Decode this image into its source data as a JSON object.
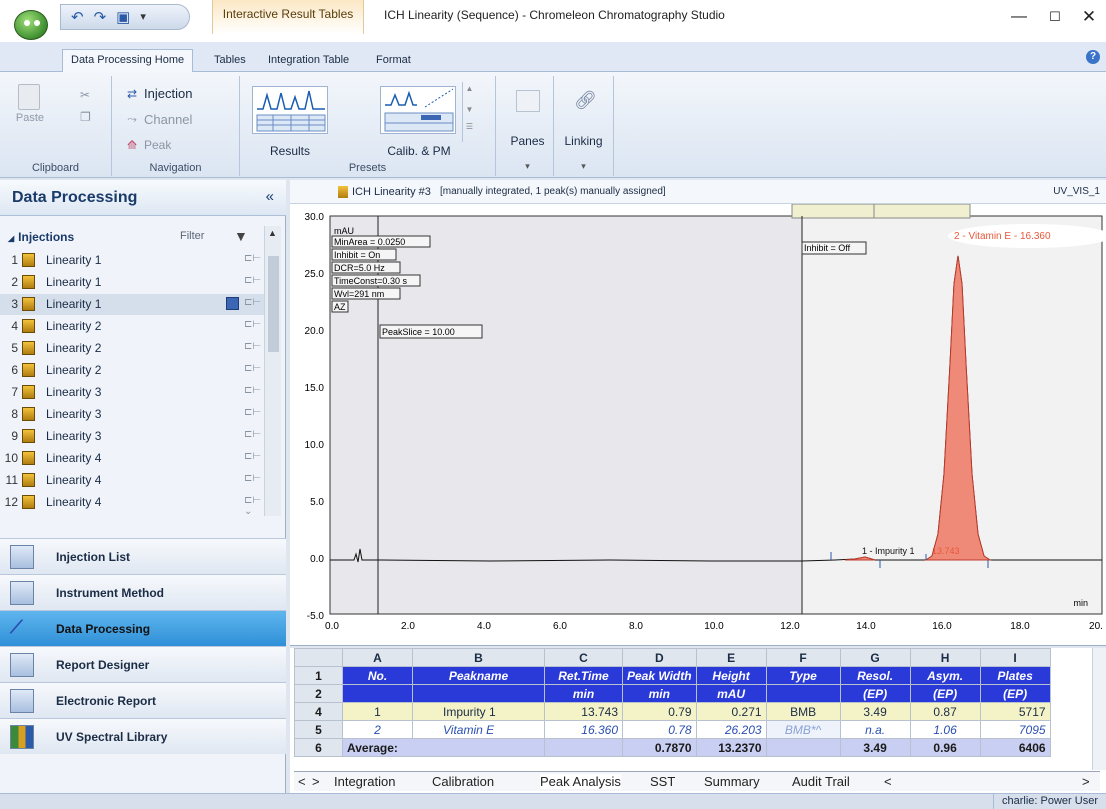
{
  "window": {
    "title": "ICH Linearity (Sequence) - Chromeleon Chromatography Studio",
    "context_tab": "Interactive Result Tables"
  },
  "ribbon_tabs": [
    "Data Processing Home",
    "Tables",
    "Integration Table",
    "Format"
  ],
  "ribbon": {
    "clipboard": {
      "paste": "Paste",
      "label": "Clipboard"
    },
    "navigation": {
      "injection": "Injection",
      "channel": "Channel",
      "peak": "Peak",
      "label": "Navigation"
    },
    "presets": {
      "results": "Results",
      "calib": "Calib. & PM",
      "label": "Presets"
    },
    "panes": "Panes",
    "linking": "Linking"
  },
  "left_pane": {
    "title": "Data Processing",
    "injections_label": "Injections",
    "filter_label": "Filter",
    "injections": [
      {
        "num": "1",
        "name": "Linearity 1"
      },
      {
        "num": "2",
        "name": "Linearity 1"
      },
      {
        "num": "3",
        "name": "Linearity 1"
      },
      {
        "num": "4",
        "name": "Linearity 2"
      },
      {
        "num": "5",
        "name": "Linearity 2"
      },
      {
        "num": "6",
        "name": "Linearity 2"
      },
      {
        "num": "7",
        "name": "Linearity 3"
      },
      {
        "num": "8",
        "name": "Linearity 3"
      },
      {
        "num": "9",
        "name": "Linearity 3"
      },
      {
        "num": "10",
        "name": "Linearity 4"
      },
      {
        "num": "11",
        "name": "Linearity 4"
      },
      {
        "num": "12",
        "name": "Linearity 4"
      }
    ],
    "workspaces": [
      "Injection List",
      "Instrument Method",
      "Data Processing",
      "Report Designer",
      "Electronic Report",
      "UV Spectral Library"
    ]
  },
  "chromatogram": {
    "title": "ICH Linearity #3",
    "title_detail": "[manually integrated, 1 peak(s) manually assigned]",
    "channel": "UV_VIS_1",
    "y_unit": "mAU",
    "x_unit": "min",
    "y_ticks": [
      "30.0",
      "25.0",
      "20.0",
      "15.0",
      "10.0",
      "5.0",
      "0.0",
      "-5.0"
    ],
    "x_ticks": [
      "0.0",
      "2.0",
      "4.0",
      "6.0",
      "8.0",
      "10.0",
      "12.0",
      "14.0",
      "16.0",
      "18.0",
      "20."
    ],
    "events": [
      "MinArea = 0.0250",
      "Inhibit = On",
      "DCR=5.0 Hz",
      "TimeConst=0.30 s",
      "Wvl=291 nm",
      "AZ",
      "PeakSlice = 10.00",
      "Inhibit = Off"
    ],
    "peak1_label": "1 - Impurity 1",
    "peak1_rt": "13.743",
    "peak2_label": "2 - Vitamin E - 16.360",
    "icon_color": "#e8583a",
    "peak_fill": "#f08a78"
  },
  "results": {
    "columns": [
      "A",
      "B",
      "C",
      "D",
      "E",
      "F",
      "G",
      "H",
      "I"
    ],
    "row_numbers": [
      "1",
      "2",
      "4",
      "5",
      "6"
    ],
    "header1": [
      "No.",
      "Peakname",
      "Ret.Time",
      "Peak Width",
      "Height",
      "Type",
      "Resol.",
      "Asym.",
      "Plates"
    ],
    "header2": [
      "",
      "",
      "min",
      "min",
      "mAU",
      "",
      "(EP)",
      "(EP)",
      "(EP)"
    ],
    "rows": [
      [
        "1",
        "Impurity 1",
        "13.743",
        "0.79",
        "0.271",
        "BMB",
        "3.49",
        "0.87",
        "5717"
      ],
      [
        "2",
        "Vitamin E",
        "16.360",
        "0.78",
        "26.203",
        "BMB*^",
        "n.a.",
        "1.06",
        "7095"
      ]
    ],
    "average": [
      "Average:",
      "",
      "",
      "0.7870",
      "13.2370",
      "",
      "3.49",
      "0.96",
      "6406"
    ],
    "sheet_tabs": [
      "Integration",
      "Calibration",
      "Peak Analysis",
      "SST",
      "Summary",
      "Audit Trail"
    ]
  },
  "status": {
    "user": "charlie: Power User"
  }
}
